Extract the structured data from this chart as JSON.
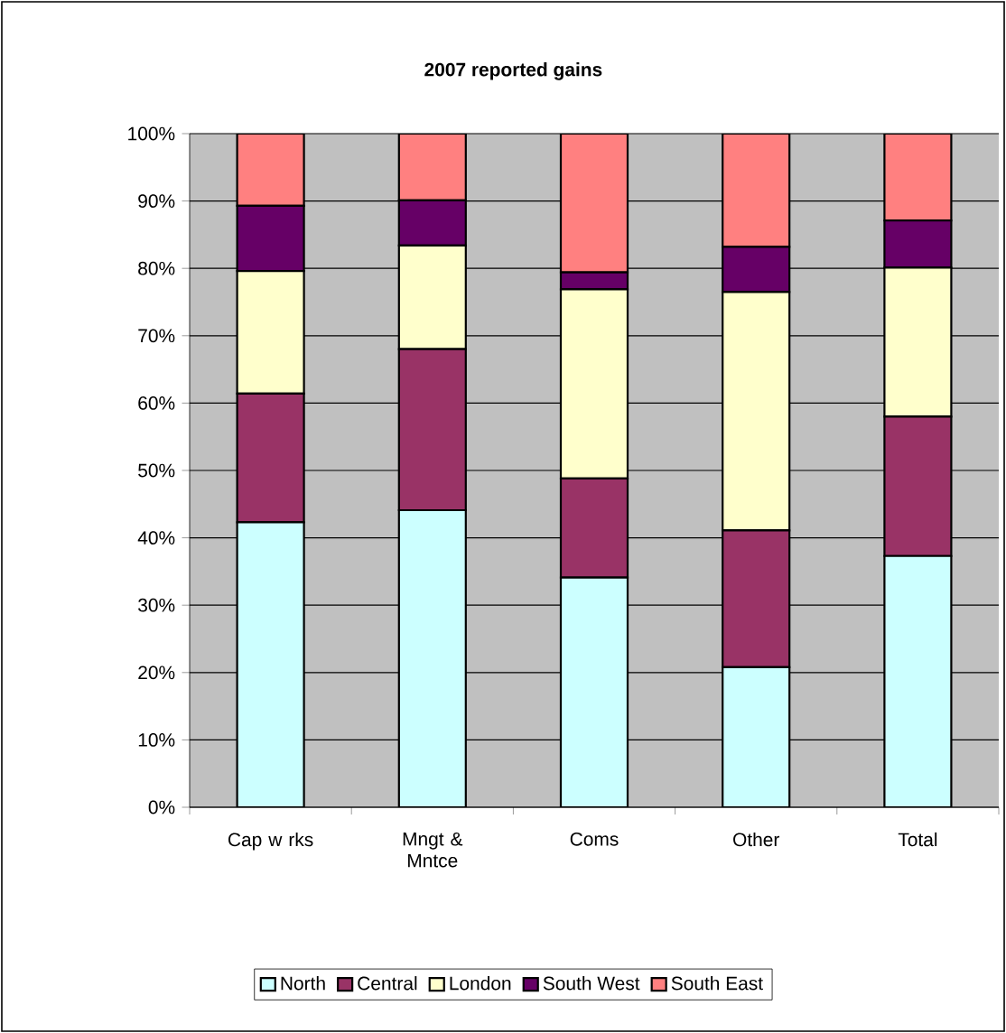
{
  "chart_data": {
    "type": "bar",
    "stacked": true,
    "title": "2007 reported gains",
    "categories": [
      "Cap w rks",
      "Mngt & Mntce",
      "Coms",
      "Other",
      "Total"
    ],
    "series": [
      {
        "name": "North",
        "color": "#ccffff",
        "values": [
          42.3,
          44.1,
          34.1,
          20.8,
          37.3
        ]
      },
      {
        "name": "Central",
        "color": "#993366",
        "values": [
          19.1,
          23.9,
          14.7,
          20.3,
          20.7
        ]
      },
      {
        "name": "London",
        "color": "#ffffcc",
        "values": [
          18.2,
          15.4,
          28.1,
          35.4,
          22.1
        ]
      },
      {
        "name": "South West",
        "color": "#660066",
        "values": [
          9.7,
          6.7,
          2.5,
          6.7,
          7.0
        ]
      },
      {
        "name": "South East",
        "color": "#ff8080",
        "values": [
          10.7,
          9.9,
          20.6,
          16.8,
          12.9
        ]
      }
    ],
    "ylim": [
      0,
      100
    ],
    "yticks": [
      {
        "value": 0,
        "label": "0%"
      },
      {
        "value": 10,
        "label": "10%"
      },
      {
        "value": 20,
        "label": "20%"
      },
      {
        "value": 30,
        "label": "30%"
      },
      {
        "value": 40,
        "label": "40%"
      },
      {
        "value": 50,
        "label": "50%"
      },
      {
        "value": 60,
        "label": "60%"
      },
      {
        "value": 70,
        "label": "70%"
      },
      {
        "value": 80,
        "label": "80%"
      },
      {
        "value": 90,
        "label": "90%"
      },
      {
        "value": 100,
        "label": "100%"
      }
    ],
    "grid": "y",
    "legend": "bottom"
  }
}
